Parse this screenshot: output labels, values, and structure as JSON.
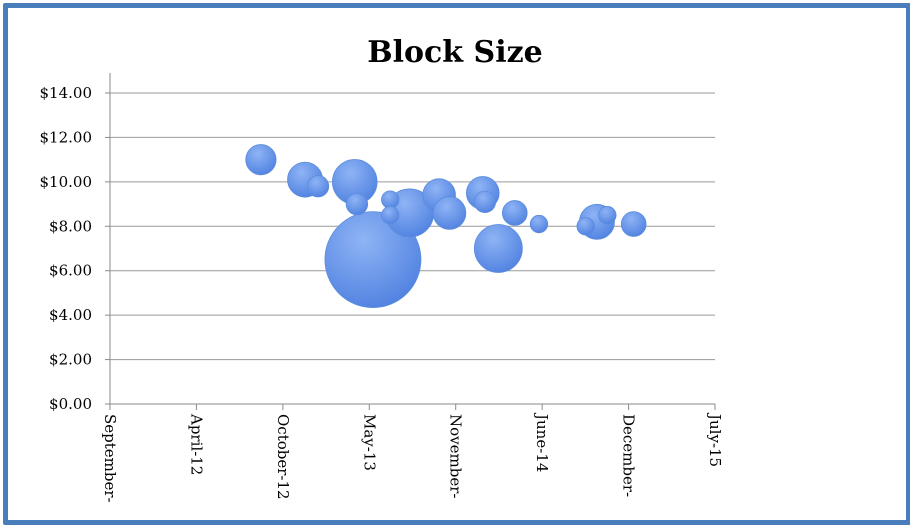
{
  "chart_data": {
    "type": "bubble",
    "title": "Block Size",
    "xlabel": "",
    "ylabel": "",
    "ylim": [
      0,
      14
    ],
    "y_ticks": [
      "$0.00",
      "$2.00",
      "$4.00",
      "$6.00",
      "$8.00",
      "$10.00",
      "$12.00",
      "$14.00"
    ],
    "x_tick_labels": [
      "September-",
      "April-12",
      "October-12",
      "May-13",
      "November-",
      "June-14",
      "December-",
      "July-15"
    ],
    "x_range": [
      "2011-09",
      "2015-07"
    ],
    "grid": "horizontal",
    "bubble_color": "#4f81e0",
    "points": [
      {
        "x": "2012-08-15",
        "y": 11.0,
        "size": 3
      },
      {
        "x": "2012-11-25",
        "y": 10.1,
        "size": 4
      },
      {
        "x": "2012-12-25",
        "y": 9.8,
        "size": 1.5
      },
      {
        "x": "2013-03-25",
        "y": 9.0,
        "size": 1.5
      },
      {
        "x": "2013-03-20",
        "y": 10.0,
        "size": 6.5
      },
      {
        "x": "2013-05-01",
        "y": 6.5,
        "size": 30
      },
      {
        "x": "2013-06-10",
        "y": 9.2,
        "size": 1
      },
      {
        "x": "2013-06-10",
        "y": 8.5,
        "size": 1
      },
      {
        "x": "2013-07-25",
        "y": 8.6,
        "size": 7.5
      },
      {
        "x": "2013-10-01",
        "y": 9.4,
        "size": 3.5
      },
      {
        "x": "2013-10-25",
        "y": 8.6,
        "size": 3.5
      },
      {
        "x": "2014-01-10",
        "y": 9.5,
        "size": 3.5
      },
      {
        "x": "2014-01-15",
        "y": 9.1,
        "size": 1.5
      },
      {
        "x": "2014-02-15",
        "y": 7.0,
        "size": 7.5
      },
      {
        "x": "2014-03-25",
        "y": 8.6,
        "size": 2
      },
      {
        "x": "2014-05-20",
        "y": 8.1,
        "size": 1
      },
      {
        "x": "2014-09-05",
        "y": 8.0,
        "size": 1
      },
      {
        "x": "2014-10-01",
        "y": 8.2,
        "size": 4
      },
      {
        "x": "2014-10-25",
        "y": 8.5,
        "size": 1
      },
      {
        "x": "2014-12-25",
        "y": 8.1,
        "size": 2
      }
    ]
  }
}
